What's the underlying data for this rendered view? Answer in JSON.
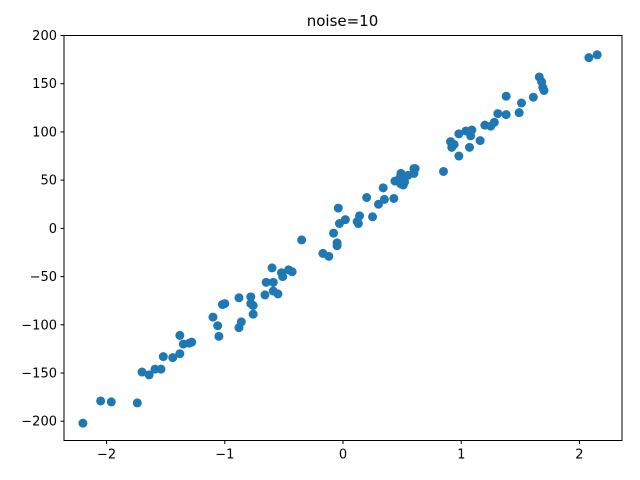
{
  "chart_data": {
    "type": "scatter",
    "title": "noise=10",
    "xlabel": "",
    "ylabel": "",
    "xlim": [
      -2.36,
      2.36
    ],
    "ylim": [
      -220,
      200
    ],
    "xticks": [
      -2,
      -1,
      0,
      1,
      2
    ],
    "xtick_labels": [
      "−2",
      "−1",
      "0",
      "1",
      "2"
    ],
    "yticks": [
      -200,
      -150,
      -100,
      -50,
      0,
      50,
      100,
      150,
      200
    ],
    "ytick_labels": [
      "−200",
      "−150",
      "−100",
      "−50",
      "0",
      "50",
      "100",
      "150",
      "200"
    ],
    "grid": false,
    "legend": "none",
    "marker_color": "#1f77b4",
    "series": [
      {
        "x": [
          -2.2,
          -2.05,
          -1.96,
          -1.74,
          -1.7,
          -1.64,
          -1.59,
          -1.54,
          -1.52,
          -1.44,
          -1.38,
          -1.38,
          -1.35,
          -1.3,
          -1.28,
          -1.1,
          -1.06,
          -1.05,
          -1.02,
          -1.0,
          -0.88,
          -0.88,
          -0.86,
          -0.78,
          -0.78,
          -0.76,
          -0.76,
          -0.66,
          -0.65,
          -0.6,
          -0.59,
          -0.59,
          -0.55,
          -0.52,
          -0.51,
          -0.46,
          -0.43,
          -0.35,
          -0.17,
          -0.12,
          -0.08,
          -0.05,
          -0.05,
          -0.04,
          -0.03,
          0.02,
          0.12,
          0.13,
          0.14,
          0.2,
          0.25,
          0.3,
          0.34,
          0.35,
          0.43,
          0.44,
          0.48,
          0.49,
          0.49,
          0.51,
          0.52,
          0.55,
          0.6,
          0.6,
          0.61,
          0.85,
          0.91,
          0.92,
          0.94,
          0.98,
          0.98,
          1.04,
          1.07,
          1.08,
          1.09,
          1.16,
          1.2,
          1.25,
          1.28,
          1.31,
          1.38,
          1.38,
          1.49,
          1.51,
          1.61,
          1.66,
          1.68,
          1.69,
          1.7,
          2.08,
          2.15
        ],
        "y": [
          -202,
          -179,
          -180,
          -181,
          -149,
          -152,
          -146,
          -146,
          -133,
          -134,
          -111,
          -130,
          -120,
          -119,
          -118,
          -92,
          -101,
          -112,
          -79,
          -78,
          -103,
          -72,
          -97,
          -71,
          -78,
          -80,
          -89,
          -69,
          -56,
          -41,
          -65,
          -56,
          -68,
          -46,
          -50,
          -43,
          -45,
          -12,
          -26,
          -29,
          -5,
          -15,
          -18,
          21,
          5,
          9,
          7,
          5,
          13,
          32,
          12,
          25,
          42,
          30,
          31,
          49,
          52,
          57,
          46,
          45,
          48,
          55,
          62,
          57,
          62,
          59,
          90,
          84,
          87,
          75,
          98,
          101,
          84,
          96,
          102,
          91,
          107,
          106,
          110,
          119,
          137,
          118,
          120,
          130,
          136,
          157,
          152,
          146,
          143,
          177,
          180
        ]
      }
    ]
  }
}
